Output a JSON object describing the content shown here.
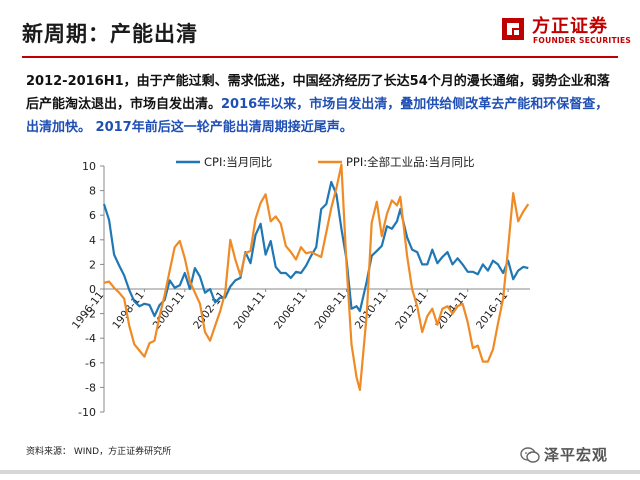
{
  "header": {
    "title": "新周期：产能出清",
    "logo": {
      "name_cn": "方正证券",
      "name_en": "FOUNDER SECURITIES",
      "color": "#c00000"
    }
  },
  "summary": {
    "part1": "2012-2016H1，由于产能过剩、需求低迷，中国经济经历了长达54个月的漫长通缩，弱势企业和落后产能淘汰退出，市场自发出清。",
    "part2": "2016年以来，市场自发出清，叠加供给侧改革去产能和环保督查，出清加快。 2017年前后这一轮产能出清周期接近尾声。"
  },
  "footer": {
    "source": "资料来源： WIND，方正证券研究所",
    "watermark": "泽平宏观"
  },
  "chart_data": {
    "type": "line",
    "ylim": [
      -10,
      10
    ],
    "yticks": [
      10,
      8,
      6,
      4,
      2,
      0,
      -2,
      -4,
      -6,
      -8,
      -10
    ],
    "xlim": [
      "1996-11",
      "2017-12"
    ],
    "xticks": [
      "1996-11",
      "1998-11",
      "2000-11",
      "2002-11",
      "2004-11",
      "2006-11",
      "2008-11",
      "2010-11",
      "2012-11",
      "2014-11",
      "2016-11"
    ],
    "legend_placement": "top",
    "grid": false,
    "series": [
      {
        "name": "CPI:当月同比",
        "color": "#1f77b4",
        "points": [
          [
            "1996-11",
            6.9
          ],
          [
            "1997-02",
            5.6
          ],
          [
            "1997-05",
            2.8
          ],
          [
            "1997-08",
            1.9
          ],
          [
            "1997-11",
            1.1
          ],
          [
            "1998-02",
            -0.1
          ],
          [
            "1998-05",
            -1.0
          ],
          [
            "1998-08",
            -1.4
          ],
          [
            "1998-11",
            -1.2
          ],
          [
            "1999-02",
            -1.3
          ],
          [
            "1999-05",
            -2.2
          ],
          [
            "1999-08",
            -1.3
          ],
          [
            "1999-11",
            -0.9
          ],
          [
            "2000-02",
            0.7
          ],
          [
            "2000-05",
            0.1
          ],
          [
            "2000-08",
            0.3
          ],
          [
            "2000-11",
            1.3
          ],
          [
            "2001-02",
            0.0
          ],
          [
            "2001-05",
            1.7
          ],
          [
            "2001-08",
            1.0
          ],
          [
            "2001-11",
            -0.3
          ],
          [
            "2002-02",
            0.0
          ],
          [
            "2002-05",
            -1.1
          ],
          [
            "2002-08",
            -0.7
          ],
          [
            "2002-11",
            -0.7
          ],
          [
            "2003-02",
            0.2
          ],
          [
            "2003-05",
            0.7
          ],
          [
            "2003-08",
            0.9
          ],
          [
            "2003-11",
            3.0
          ],
          [
            "2004-02",
            2.1
          ],
          [
            "2004-05",
            4.4
          ],
          [
            "2004-08",
            5.3
          ],
          [
            "2004-11",
            2.8
          ],
          [
            "2005-02",
            3.9
          ],
          [
            "2005-05",
            1.8
          ],
          [
            "2005-08",
            1.3
          ],
          [
            "2005-11",
            1.3
          ],
          [
            "2006-02",
            0.9
          ],
          [
            "2006-05",
            1.4
          ],
          [
            "2006-08",
            1.3
          ],
          [
            "2006-11",
            1.9
          ],
          [
            "2007-02",
            2.7
          ],
          [
            "2007-05",
            3.4
          ],
          [
            "2007-08",
            6.5
          ],
          [
            "2007-11",
            6.9
          ],
          [
            "2008-02",
            8.7
          ],
          [
            "2008-05",
            7.7
          ],
          [
            "2008-08",
            4.9
          ],
          [
            "2008-11",
            2.4
          ],
          [
            "2009-02",
            -1.6
          ],
          [
            "2009-05",
            -1.4
          ],
          [
            "2009-07",
            -1.8
          ],
          [
            "2009-11",
            0.6
          ],
          [
            "2010-02",
            2.7
          ],
          [
            "2010-05",
            3.1
          ],
          [
            "2010-08",
            3.5
          ],
          [
            "2010-11",
            5.1
          ],
          [
            "2011-02",
            4.9
          ],
          [
            "2011-05",
            5.5
          ],
          [
            "2011-07",
            6.5
          ],
          [
            "2011-11",
            4.2
          ],
          [
            "2012-02",
            3.2
          ],
          [
            "2012-05",
            3.0
          ],
          [
            "2012-08",
            2.0
          ],
          [
            "2012-11",
            2.0
          ],
          [
            "2013-02",
            3.2
          ],
          [
            "2013-05",
            2.1
          ],
          [
            "2013-08",
            2.6
          ],
          [
            "2013-11",
            3.0
          ],
          [
            "2014-02",
            2.0
          ],
          [
            "2014-05",
            2.5
          ],
          [
            "2014-08",
            2.0
          ],
          [
            "2014-11",
            1.4
          ],
          [
            "2015-02",
            1.4
          ],
          [
            "2015-05",
            1.2
          ],
          [
            "2015-08",
            2.0
          ],
          [
            "2015-11",
            1.5
          ],
          [
            "2016-02",
            2.3
          ],
          [
            "2016-05",
            2.0
          ],
          [
            "2016-08",
            1.3
          ],
          [
            "2016-11",
            2.3
          ],
          [
            "2017-02",
            0.8
          ],
          [
            "2017-05",
            1.5
          ],
          [
            "2017-08",
            1.8
          ],
          [
            "2017-11",
            1.7
          ]
        ]
      },
      {
        "name": "PPI:全部工业品:当月同比",
        "color": "#f08a24",
        "points": [
          [
            "1996-11",
            0.5
          ],
          [
            "1997-02",
            0.6
          ],
          [
            "1997-05",
            0.1
          ],
          [
            "1997-08",
            -0.3
          ],
          [
            "1997-11",
            -0.8
          ],
          [
            "1998-02",
            -3.0
          ],
          [
            "1998-05",
            -4.5
          ],
          [
            "1998-08",
            -5.0
          ],
          [
            "1998-11",
            -5.5
          ],
          [
            "1999-02",
            -4.4
          ],
          [
            "1999-05",
            -4.2
          ],
          [
            "1999-08",
            -2.2
          ],
          [
            "1999-11",
            -0.5
          ],
          [
            "2000-02",
            1.5
          ],
          [
            "2000-05",
            3.4
          ],
          [
            "2000-08",
            3.9
          ],
          [
            "2000-11",
            2.5
          ],
          [
            "2001-02",
            0.6
          ],
          [
            "2001-05",
            -0.3
          ],
          [
            "2001-08",
            -1.2
          ],
          [
            "2001-11",
            -3.5
          ],
          [
            "2002-02",
            -4.2
          ],
          [
            "2002-05",
            -3.0
          ],
          [
            "2002-08",
            -1.8
          ],
          [
            "2002-11",
            -0.3
          ],
          [
            "2003-02",
            4.0
          ],
          [
            "2003-05",
            2.4
          ],
          [
            "2003-08",
            1.1
          ],
          [
            "2003-11",
            2.9
          ],
          [
            "2004-02",
            3.1
          ],
          [
            "2004-05",
            5.7
          ],
          [
            "2004-08",
            7.0
          ],
          [
            "2004-11",
            7.7
          ],
          [
            "2005-02",
            5.5
          ],
          [
            "2005-05",
            5.9
          ],
          [
            "2005-08",
            5.3
          ],
          [
            "2005-11",
            3.5
          ],
          [
            "2006-02",
            3.0
          ],
          [
            "2006-05",
            2.4
          ],
          [
            "2006-08",
            3.4
          ],
          [
            "2006-11",
            2.9
          ],
          [
            "2007-02",
            3.0
          ],
          [
            "2007-05",
            2.8
          ],
          [
            "2007-08",
            2.6
          ],
          [
            "2007-11",
            4.6
          ],
          [
            "2008-02",
            6.6
          ],
          [
            "2008-05",
            8.2
          ],
          [
            "2008-08",
            10.1
          ],
          [
            "2008-11",
            2.0
          ],
          [
            "2009-02",
            -4.5
          ],
          [
            "2009-05",
            -7.2
          ],
          [
            "2009-07",
            -8.2
          ],
          [
            "2009-11",
            -2.1
          ],
          [
            "2010-02",
            5.4
          ],
          [
            "2010-05",
            7.1
          ],
          [
            "2010-08",
            4.3
          ],
          [
            "2010-11",
            6.1
          ],
          [
            "2011-02",
            7.2
          ],
          [
            "2011-05",
            6.8
          ],
          [
            "2011-07",
            7.5
          ],
          [
            "2011-11",
            2.7
          ],
          [
            "2012-02",
            0.0
          ],
          [
            "2012-05",
            -1.4
          ],
          [
            "2012-08",
            -3.5
          ],
          [
            "2012-11",
            -2.2
          ],
          [
            "2013-02",
            -1.6
          ],
          [
            "2013-05",
            -2.9
          ],
          [
            "2013-08",
            -1.6
          ],
          [
            "2013-11",
            -1.4
          ],
          [
            "2014-02",
            -2.0
          ],
          [
            "2014-05",
            -1.4
          ],
          [
            "2014-08",
            -1.2
          ],
          [
            "2014-11",
            -2.7
          ],
          [
            "2015-02",
            -4.8
          ],
          [
            "2015-05",
            -4.6
          ],
          [
            "2015-08",
            -5.9
          ],
          [
            "2015-11",
            -5.9
          ],
          [
            "2016-02",
            -4.9
          ],
          [
            "2016-05",
            -2.8
          ],
          [
            "2016-08",
            -0.8
          ],
          [
            "2016-11",
            3.3
          ],
          [
            "2017-02",
            7.8
          ],
          [
            "2017-05",
            5.5
          ],
          [
            "2017-08",
            6.3
          ],
          [
            "2017-11",
            6.9
          ]
        ]
      }
    ]
  }
}
